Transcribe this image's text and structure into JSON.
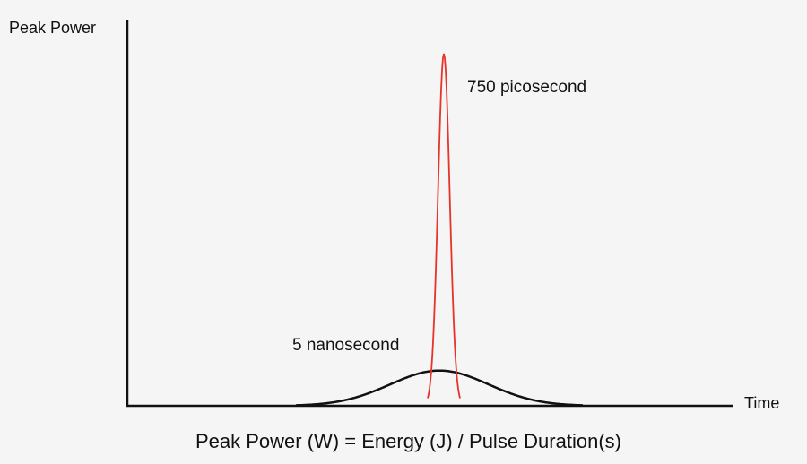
{
  "axes": {
    "y_label": "Peak Power",
    "x_label": "Time"
  },
  "pulses": [
    {
      "label": "750 picosecond",
      "color": "#e8332a",
      "relative_peak": 1.0
    },
    {
      "label": "5 nanosecond",
      "color": "#111111",
      "relative_peak": 0.1
    }
  ],
  "formula": "Peak Power (W) = Energy (J) / Pulse Duration(s)"
}
